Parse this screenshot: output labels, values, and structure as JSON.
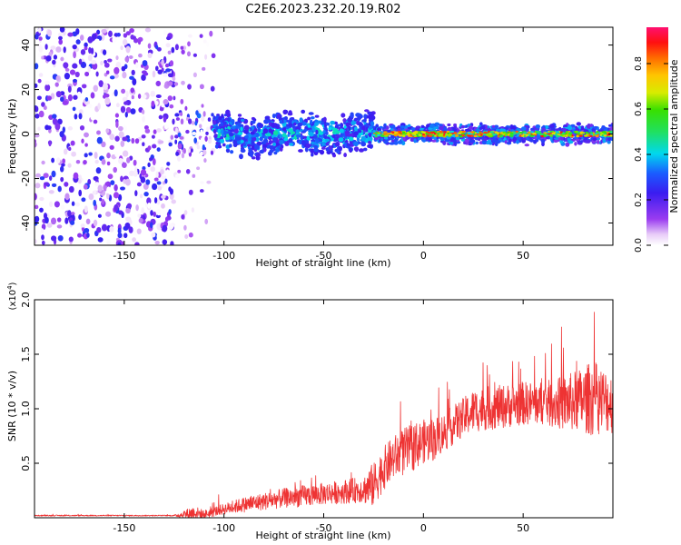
{
  "title": "C2E6.2023.232.20.19.R02",
  "colors": {
    "snr_line": "#ee3333",
    "axis": "#000000"
  },
  "chart_data": [
    {
      "type": "heatmap",
      "xlabel": "Height of straight line (km)",
      "ylabel": "Frequency (Hz)",
      "xlim": [
        -195,
        95
      ],
      "ylim": [
        -50,
        48
      ],
      "xticks": [
        -150,
        -100,
        -50,
        0,
        50
      ],
      "yticks": [
        -40,
        -20,
        0,
        20,
        40
      ],
      "colorbar": {
        "label": "Normalized spectral amplitude",
        "range": [
          0.0,
          0.96
        ],
        "ticks": [
          "0.0",
          "0.2",
          "0.4",
          "0.6",
          "0.8"
        ],
        "tick_values": [
          0.0,
          0.2,
          0.4,
          0.6,
          0.8
        ],
        "colormap": "rainbow (white-violet-blue-cyan-green-yellow-orange-red-magenta)"
      },
      "regions": [
        {
          "x": [
            -195,
            -125
          ],
          "description": "scattered noise filling full frequency band",
          "amplitude_range": [
            0.0,
            0.3
          ]
        },
        {
          "x": [
            -125,
            -105
          ],
          "description": "sparse noise, band forming near 0 Hz",
          "amplitude_range": [
            0.0,
            0.35
          ]
        },
        {
          "x": [
            -105,
            -25
          ],
          "description": "band centered near 0 Hz, width about +/-8 Hz",
          "amplitude_range": [
            0.2,
            0.5
          ]
        },
        {
          "x": [
            -25,
            95
          ],
          "description": "narrow line at 0 Hz, width about +/-3 Hz",
          "amplitude_range": [
            0.4,
            0.95
          ]
        }
      ]
    },
    {
      "type": "line",
      "xlabel": "Height of straight line (km)",
      "ylabel": "SNR (10 * v/v)",
      "yscale_label": "(x10^4)",
      "xlim": [
        -195,
        95
      ],
      "ylim": [
        0,
        2.0
      ],
      "xticks": [
        -150,
        -100,
        -50,
        0,
        50
      ],
      "yticks": [
        0.5,
        1.0,
        1.5,
        2.0
      ],
      "ytick_labels": [
        "0.5",
        "1.0",
        "1.5",
        "2.0"
      ],
      "x": [
        -195,
        -180,
        -160,
        -140,
        -125,
        -120,
        -115,
        -110,
        -100,
        -90,
        -80,
        -70,
        -60,
        -50,
        -40,
        -30,
        -27,
        -25,
        -20,
        -15,
        -10,
        -5,
        0,
        5,
        10,
        15,
        20,
        25,
        30,
        40,
        50,
        60,
        70,
        80,
        85,
        90,
        95
      ],
      "values": [
        0.02,
        0.02,
        0.02,
        0.02,
        0.02,
        0.03,
        0.05,
        0.03,
        0.08,
        0.12,
        0.15,
        0.18,
        0.2,
        0.22,
        0.24,
        0.26,
        0.28,
        0.3,
        0.45,
        0.55,
        0.6,
        0.65,
        0.7,
        0.72,
        0.78,
        0.85,
        0.92,
        0.98,
        1.0,
        1.02,
        1.05,
        1.05,
        1.05,
        1.08,
        1.1,
        1.08,
        1.05
      ],
      "noise_amplitude": [
        0.005,
        0.005,
        0.005,
        0.005,
        0.005,
        0.04,
        0.06,
        0.04,
        0.05,
        0.07,
        0.08,
        0.09,
        0.1,
        0.1,
        0.11,
        0.12,
        0.2,
        0.2,
        0.2,
        0.2,
        0.22,
        0.22,
        0.2,
        0.2,
        0.18,
        0.18,
        0.18,
        0.2,
        0.2,
        0.2,
        0.2,
        0.2,
        0.25,
        0.3,
        0.35,
        0.3,
        0.28
      ]
    }
  ]
}
